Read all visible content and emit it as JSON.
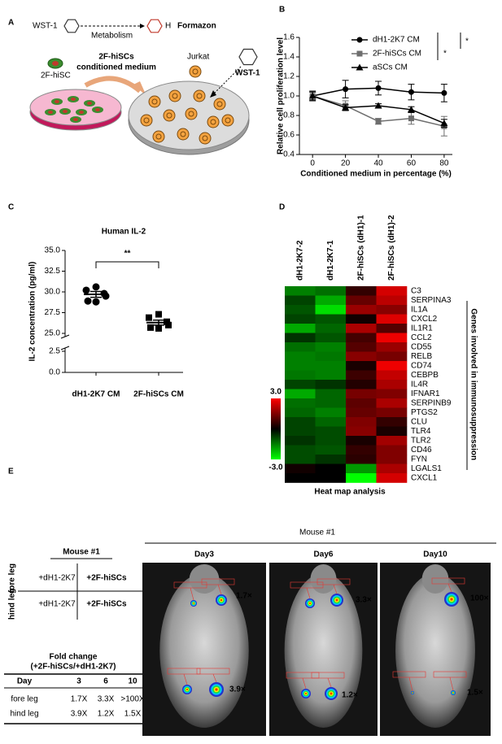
{
  "panel_labels": [
    "A",
    "B",
    "C",
    "D",
    "E"
  ],
  "schematic": {
    "wst1_top": "WST-1",
    "metabolism": "Metabolism",
    "h_label": "H",
    "formazon": "Formazon",
    "cell_label": "2F-hiSC",
    "medium_label": [
      "2F-hiSCs",
      "conditioned medium"
    ],
    "jurkat": "Jurkat",
    "wst1_dish": "WST-1"
  },
  "chart_data": [
    {
      "type": "line",
      "ylabel": "Relative cell proliferation level",
      "xlabel": "Conditioned medium in percentage (%)",
      "x": [
        0,
        20,
        40,
        60,
        80
      ],
      "xlim": [
        -8,
        85
      ],
      "xticks": [
        0,
        20,
        40,
        60,
        80
      ],
      "ylim": [
        0.4,
        1.6
      ],
      "yticks": [
        0.4,
        0.6,
        0.8,
        {
          "value": 1,
          "label": "1.0"
        },
        1.2,
        1.4,
        1.6
      ],
      "legend": "upper right",
      "series": [
        {
          "name": "dH1-2K7 CM",
          "color": "#000000",
          "marker": "circle",
          "values": [
            1.0,
            1.07,
            1.08,
            1.04,
            1.03
          ],
          "errors": [
            0.05,
            0.09,
            0.07,
            0.08,
            0.09
          ]
        },
        {
          "name": "2F-hiSCs CM",
          "color": "#6e6e6e",
          "marker": "square",
          "values": [
            1.0,
            0.9,
            0.74,
            0.77,
            0.69
          ],
          "errors": [
            0.04,
            0.05,
            0.03,
            0.06,
            0.1
          ]
        },
        {
          "name": "aSCs CM",
          "color": "#000000",
          "marker": "triangle",
          "values": [
            1.0,
            0.88,
            0.9,
            0.86,
            0.72
          ],
          "errors": [
            0.04,
            0.03,
            0.02,
            0.03,
            0.04
          ]
        }
      ],
      "annotations": [
        "*",
        "*"
      ]
    },
    {
      "type": "dot",
      "title": "Human IL-2",
      "ylabel": "IL-2 concentration (pg/ml)",
      "categories": [
        "dH1-2K7 CM",
        "2F-hiSCs CM"
      ],
      "ylim": [
        0,
        35
      ],
      "ybreak": [
        2.5,
        25
      ],
      "yticks": [
        {
          "value": 0,
          "label": "0.0"
        },
        2.5,
        {
          "value": 25,
          "label": "25.0"
        },
        27.5,
        {
          "value": 30,
          "label": "30.0"
        },
        32.5,
        {
          "value": 35,
          "label": "35.0"
        }
      ],
      "groups": [
        {
          "color": "#000000",
          "marker": "circle",
          "values": [
            30.6,
            30.2,
            29.8,
            29.5,
            28.9,
            28.8
          ],
          "mean": 29.7,
          "sem": 0.35
        },
        {
          "color": "#000000",
          "marker": "square",
          "values": [
            27.3,
            26.9,
            26.4,
            26.0,
            25.7,
            25.6
          ],
          "mean": 26.3,
          "sem": 0.3
        }
      ],
      "annotation": "**"
    },
    {
      "type": "heatmap",
      "title": "Heat map analysis",
      "ylabel": "Genes involved in immunosuppression",
      "columns": [
        "dH1-2K7-2",
        "dH1-2K7-1",
        "2F-hiSCs (dH1)-1",
        "2F-hiSCs (dH1)-2"
      ],
      "rows": [
        "C3",
        "SERPINA3",
        "IL1A",
        "CXCL2",
        "IL1R1",
        "CCL2",
        "CD55",
        "RELB",
        "CD74",
        "CEBPB",
        "IL4R",
        "IFNAR1",
        "SERPINB9",
        "PTGS2",
        "CLU",
        "TLR4",
        "TLR2",
        "CD46",
        "FYN",
        "LGALS1",
        "CXCL1"
      ],
      "values": [
        [
          -1.5,
          -1.3,
          0.6,
          2.5
        ],
        [
          -0.8,
          -2.0,
          1.2,
          2.2
        ],
        [
          -1.0,
          -2.6,
          1.8,
          1.6
        ],
        [
          -0.8,
          -1.0,
          0.2,
          2.6
        ],
        [
          -2.0,
          -1.2,
          2.0,
          1.0
        ],
        [
          -0.6,
          -1.0,
          0.8,
          2.8
        ],
        [
          -1.3,
          -1.5,
          1.0,
          1.8
        ],
        [
          -1.5,
          -1.4,
          1.6,
          1.4
        ],
        [
          -1.5,
          -1.5,
          0.3,
          2.8
        ],
        [
          -1.4,
          -1.5,
          0.7,
          2.3
        ],
        [
          -0.8,
          -0.6,
          0.4,
          2.0
        ],
        [
          -2.0,
          -1.2,
          1.4,
          1.5
        ],
        [
          -1.3,
          -1.2,
          1.1,
          2.0
        ],
        [
          -1.2,
          -1.5,
          1.2,
          1.4
        ],
        [
          -0.8,
          -1.2,
          1.5,
          0.6
        ],
        [
          -0.8,
          -0.9,
          1.6,
          0.3
        ],
        [
          -0.6,
          -0.9,
          0.3,
          1.9
        ],
        [
          -0.9,
          -1.0,
          0.6,
          1.5
        ],
        [
          -0.9,
          -0.6,
          0.5,
          1.5
        ],
        [
          0.2,
          0.0,
          -1.8,
          2.0
        ],
        [
          0.0,
          0.0,
          -3.0,
          2.5
        ]
      ],
      "colorbar": {
        "lim": [
          -3,
          3
        ],
        "ticks": [
          {
            "value": 3,
            "label": "3.0"
          },
          {
            "value": -3,
            "label": "-3.0"
          }
        ],
        "colors": [
          "#00ff00",
          "#000000",
          "#ff0000"
        ]
      }
    }
  ],
  "mouse_table": {
    "title": "Mouse #1",
    "row_labels": [
      "fore leg",
      "hind leg"
    ],
    "cells": [
      [
        "+dH1-2K7",
        "+2F-hiSCs"
      ],
      [
        "+dH1-2K7",
        "+2F-hiSCs"
      ]
    ]
  },
  "fold_change": {
    "title": [
      "Fold change",
      "(+2F-hiSCs/+dH1-2K7)"
    ],
    "header": [
      "Day",
      "3",
      "6",
      "10"
    ],
    "rows": [
      [
        "fore leg",
        "1.7X",
        "3.3X",
        ">100X"
      ],
      [
        "hind leg",
        "3.9X",
        "1.2X",
        "1.5X"
      ]
    ]
  },
  "imaging": {
    "title": "Mouse #1",
    "days": [
      "Day3",
      "Day6",
      "Day10"
    ],
    "overlays": [
      [
        "1.7×",
        "3.9×"
      ],
      [
        "3.3×",
        "1.2×"
      ],
      [
        "100×",
        "1.5×"
      ]
    ]
  }
}
